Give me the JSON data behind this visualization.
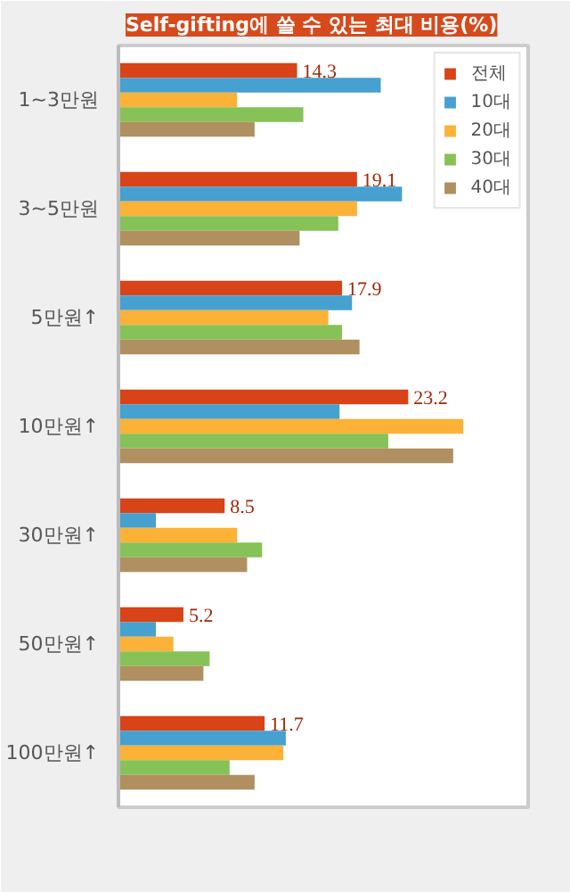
{
  "chart_data": {
    "type": "bar",
    "orientation": "horizontal",
    "title": "Self-gifting에 쓸 수 있는 최대 비용(%)",
    "categories": [
      "1~3만원",
      "3~5만원",
      "5만원↑",
      "10만원↑",
      "30만원↑",
      "50만원↑",
      "100만원↑"
    ],
    "series": [
      {
        "name": "전체",
        "color": "#d84318",
        "values": [
          14.3,
          19.1,
          17.9,
          23.2,
          8.5,
          5.2,
          11.7
        ],
        "value_labels": [
          "14.3",
          "19.1",
          "17.9",
          "23.2",
          "8.5",
          "5.2",
          "11.7"
        ]
      },
      {
        "name": "10대",
        "color": "#46a0d0",
        "values": [
          21.0,
          22.7,
          18.7,
          17.7,
          3.0,
          3.0,
          13.4
        ]
      },
      {
        "name": "20대",
        "color": "#fbb237",
        "values": [
          9.5,
          19.1,
          16.8,
          27.6,
          9.5,
          4.4,
          13.2
        ]
      },
      {
        "name": "30대",
        "color": "#86c257",
        "values": [
          14.8,
          17.6,
          17.9,
          21.6,
          11.5,
          7.3,
          8.9
        ]
      },
      {
        "name": "40대",
        "color": "#b09060",
        "values": [
          10.9,
          14.5,
          19.3,
          26.8,
          10.3,
          6.8,
          10.9
        ]
      }
    ],
    "xlim": [
      0,
      32.8
    ],
    "tick_labels": "y",
    "grid": false,
    "legend": "top right"
  }
}
